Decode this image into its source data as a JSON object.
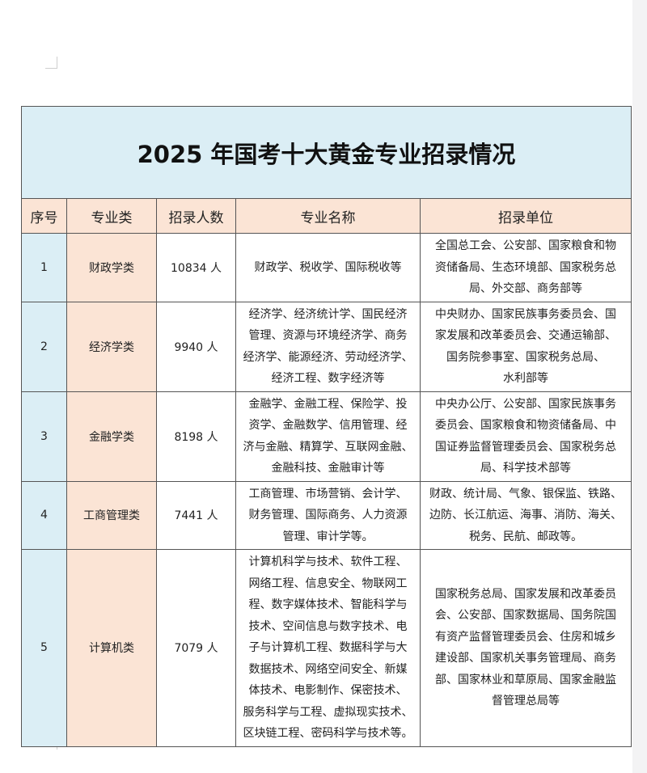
{
  "title": "2025 年国考十大黄金专业招录情况",
  "headers": [
    "序号",
    "专业类",
    "招录人数",
    "专业名称",
    "招录单位"
  ],
  "rows": [
    {
      "no": "1",
      "category": "财政学类",
      "count": "10834 人",
      "majors": [
        "财政学、税收学、国际税收等"
      ],
      "units": [
        "全国总工会、公安部、国家粮食和物",
        "资储备局、生态环境部、国家税务总",
        "局、外交部、商务部等"
      ]
    },
    {
      "no": "2",
      "category": "经济学类",
      "count": "9940 人",
      "majors": [
        "经济学、经济统计学、国民经济",
        "管理、资源与环境经济学、商务",
        "经济学、能源经济、劳动经济学、",
        "经济工程、数字经济等"
      ],
      "units": [
        "中央财办、国家民族事务委员会、国",
        "家发展和改革委员会、交通运输部、",
        "国务院参事室、国家税务总局、",
        "水利部等"
      ]
    },
    {
      "no": "3",
      "category": "金融学类",
      "count": "8198 人",
      "majors": [
        "金融学、金融工程、保险学、投",
        "资学、金融数学、信用管理、经",
        "济与金融、精算学、互联网金融、",
        "金融科技、金融审计等"
      ],
      "units": [
        "中央办公厅、公安部、国家民族事务",
        "委员会、国家粮食和物资储备局、中",
        "国证券监督管理委员会、国家税务总",
        "局、科学技术部等"
      ]
    },
    {
      "no": "4",
      "category": "工商管理类",
      "count": "7441 人",
      "majors": [
        "工商管理、市场营销、会计学、",
        "财务管理、国际商务、人力资源",
        "管理、审计学等。"
      ],
      "units": [
        "财政、统计局、气象、银保监、铁路、",
        "边防、长江航运、海事、消防、海关、",
        "税务、民航、邮政等。"
      ]
    },
    {
      "no": "5",
      "category": "计算机类",
      "count": "7079 人",
      "majors": [
        "计算机科学与技术、软件工程、",
        "网络工程、信息安全、物联网工",
        "程、数字媒体技术、智能科学与",
        "技术、空间信息与数字技术、电",
        "子与计算机工程、数据科学与大",
        "数据技术、网络空间安全、新媒",
        "体技术、电影制作、保密技术、",
        "服务科学与工程、虚拟现实技术、",
        "区块链工程、密码科学与技术等。"
      ],
      "units": [
        "国家税务总局、国家发展和改革委员",
        "会、公安部、国家数据局、国务院国",
        "有资产监督管理委员会、住房和城乡",
        "建设部、国家机关事务管理局、商务",
        "部、国家林业和草原局、国家金融监",
        "督管理总局等"
      ]
    }
  ],
  "colors": {
    "title_bg": "#dbeef5",
    "header_bg": "#fbe4d5"
  }
}
